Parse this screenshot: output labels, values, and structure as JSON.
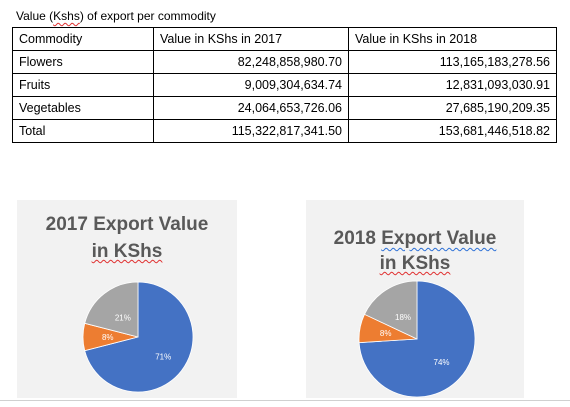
{
  "document": {
    "caption_prefix": "Value (",
    "caption_unit": "Kshs",
    "caption_suffix": ") of export per commodity"
  },
  "table": {
    "headers": [
      "Commodity",
      "Value in KShs in 2017",
      "Value in KShs in 2018"
    ],
    "rows": [
      [
        "Flowers",
        "82,248,858,980.70",
        "113,165,183,278.56"
      ],
      [
        "Fruits",
        "9,009,304,634.74",
        "12,831,093,030.91"
      ],
      [
        "Vegetables",
        "24,064,653,726.06",
        "27,685,190,209.35"
      ],
      [
        "Total",
        "115,322,817,341.50",
        "153,681,446,518.82"
      ]
    ]
  },
  "chart_data": [
    {
      "type": "pie",
      "title_line1": "2017 Export Value",
      "title_line2": "in KShs",
      "slices": [
        {
          "label": "71%",
          "value": 71,
          "color": "#4472c4"
        },
        {
          "label": "8%",
          "value": 8,
          "color": "#ed7d31"
        },
        {
          "label": "21%",
          "value": 21,
          "color": "#a5a5a5"
        }
      ]
    },
    {
      "type": "pie",
      "title_line1": "2018 Export  Value",
      "title_line2": "in KShs",
      "slices": [
        {
          "label": "74%",
          "value": 74,
          "color": "#4472c4"
        },
        {
          "label": "8%",
          "value": 8,
          "color": "#ed7d31"
        },
        {
          "label": "18%",
          "value": 18,
          "color": "#a5a5a5"
        }
      ]
    }
  ]
}
